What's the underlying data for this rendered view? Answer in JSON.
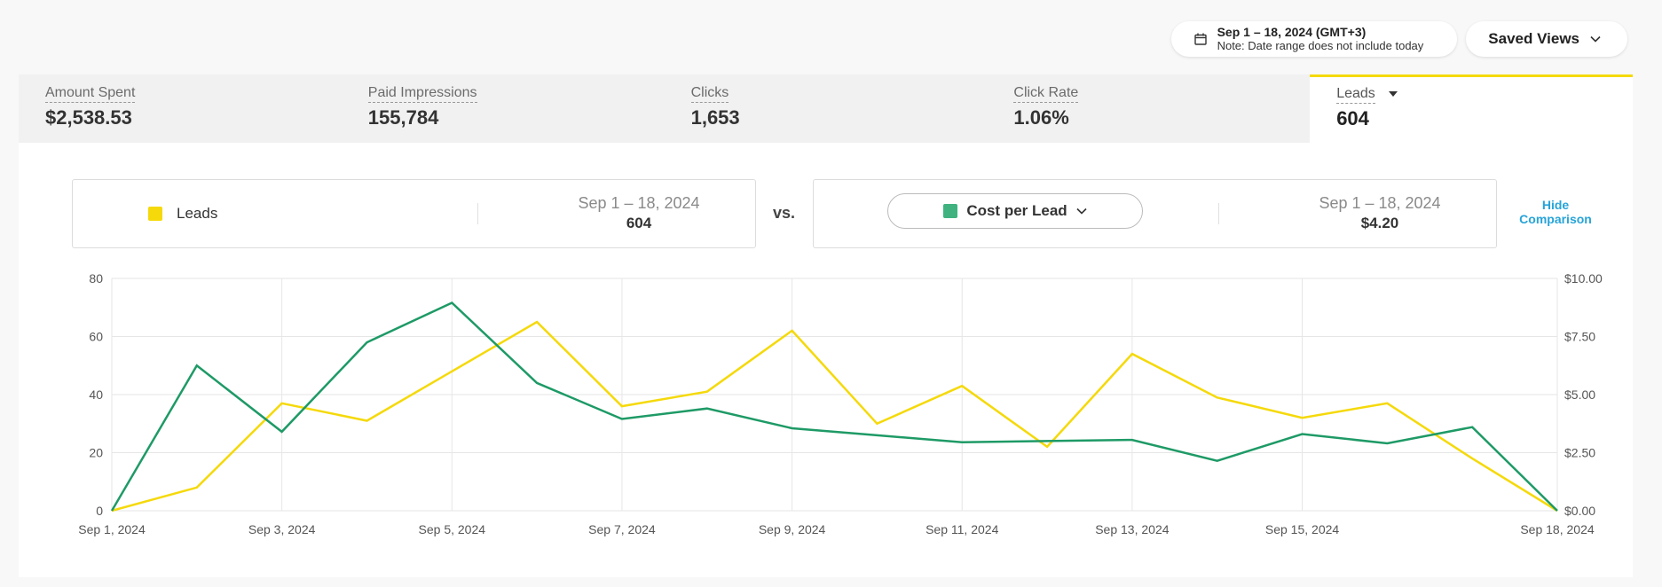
{
  "header": {
    "date_range": "Sep 1 – 18, 2024 (GMT+3)",
    "date_note": "Note: Date range does not include today",
    "saved_views_label": "Saved Views"
  },
  "metrics": [
    {
      "label": "Amount Spent",
      "value": "$2,538.53",
      "active": false
    },
    {
      "label": "Paid Impressions",
      "value": "155,784",
      "active": false
    },
    {
      "label": "Clicks",
      "value": "1,653",
      "active": false
    },
    {
      "label": "Click Rate",
      "value": "1.06%",
      "active": false
    },
    {
      "label": "Leads",
      "value": "604",
      "active": true
    }
  ],
  "comparison": {
    "left": {
      "name": "Leads",
      "range": "Sep 1 – 18, 2024",
      "value": "604"
    },
    "vs_label": "vs.",
    "right": {
      "name": "Cost per Lead",
      "range": "Sep 1 – 18, 2024",
      "value": "$4.20"
    },
    "hide_label_1": "Hide",
    "hide_label_2": "Comparison"
  },
  "colors": {
    "leads": "#f5d90a",
    "cpl": "#1e9a66",
    "accent": "#27a4d8"
  },
  "chart_data": {
    "type": "line",
    "x": [
      "Sep 1, 2024",
      "Sep 2, 2024",
      "Sep 3, 2024",
      "Sep 4, 2024",
      "Sep 5, 2024",
      "Sep 6, 2024",
      "Sep 7, 2024",
      "Sep 8, 2024",
      "Sep 9, 2024",
      "Sep 10, 2024",
      "Sep 11, 2024",
      "Sep 12, 2024",
      "Sep 13, 2024",
      "Sep 14, 2024",
      "Sep 15, 2024",
      "Sep 16, 2024",
      "Sep 17, 2024",
      "Sep 18, 2024"
    ],
    "x_tick_labels": [
      "Sep 1, 2024",
      "Sep 3, 2024",
      "Sep 5, 2024",
      "Sep 7, 2024",
      "Sep 9, 2024",
      "Sep 11, 2024",
      "Sep 13, 2024",
      "Sep 15, 2024",
      "Sep 18, 2024"
    ],
    "series": [
      {
        "name": "Leads",
        "axis": "left",
        "values": [
          0,
          8,
          37,
          31,
          48,
          65,
          36,
          41,
          62,
          30,
          43,
          22,
          54,
          39,
          32,
          37,
          18,
          0
        ]
      },
      {
        "name": "Cost per Lead",
        "axis": "right",
        "values": [
          0,
          6.25,
          3.4,
          7.25,
          8.95,
          5.5,
          3.95,
          4.4,
          3.55,
          3.25,
          2.95,
          3.0,
          3.05,
          2.15,
          3.3,
          2.9,
          3.6,
          0
        ]
      }
    ],
    "y_left": {
      "ylim": [
        0,
        80
      ],
      "ticks": [
        "0",
        "20",
        "40",
        "60",
        "80"
      ]
    },
    "y_right": {
      "ylim": [
        0,
        10
      ],
      "ticks": [
        "$0.00",
        "$2.50",
        "$5.00",
        "$7.50",
        "$10.00"
      ]
    },
    "grid": true
  }
}
